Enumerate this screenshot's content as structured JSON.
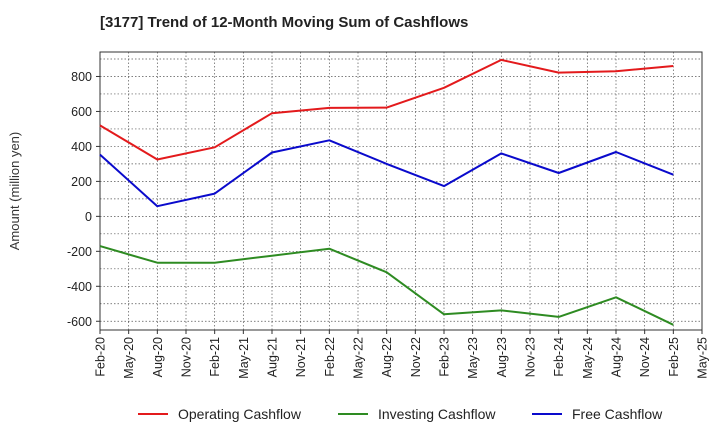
{
  "chart_data": {
    "type": "line",
    "title": "[3177]  Trend of 12-Month Moving Sum of Cashflows",
    "ylabel": "Amount (million yen)",
    "xlabel": "",
    "ylim": [
      -650,
      940
    ],
    "yticks": [
      -600,
      -400,
      -200,
      0,
      200,
      400,
      600,
      800
    ],
    "xtick_labels": [
      "Feb-20",
      "May-20",
      "Aug-20",
      "Nov-20",
      "Feb-21",
      "May-21",
      "Aug-21",
      "Nov-21",
      "Feb-22",
      "May-22",
      "Aug-22",
      "Nov-22",
      "Feb-23",
      "May-23",
      "Aug-23",
      "Nov-23",
      "Feb-24",
      "May-24",
      "Aug-24",
      "Nov-24",
      "Feb-25",
      "May-25"
    ],
    "x": [
      "Feb-20",
      "Aug-20",
      "Feb-21",
      "Aug-21",
      "Feb-22",
      "Aug-22",
      "Feb-23",
      "Aug-23",
      "Feb-24",
      "Aug-24",
      "Feb-25"
    ],
    "grid": true,
    "legend_position": "bottom",
    "series": [
      {
        "name": "Operating Cashflow",
        "color": "#e31a1c",
        "values": [
          520,
          325,
          395,
          590,
          620,
          622,
          735,
          895,
          822,
          830,
          860
        ]
      },
      {
        "name": "Investing Cashflow",
        "color": "#2e8b22",
        "values": [
          -170,
          -265,
          -265,
          -225,
          -185,
          -320,
          -560,
          -538,
          -575,
          -463,
          -620
        ]
      },
      {
        "name": "Free Cashflow",
        "color": "#0a0acc",
        "values": [
          353,
          58,
          130,
          365,
          435,
          300,
          173,
          360,
          248,
          368,
          238
        ]
      }
    ]
  }
}
